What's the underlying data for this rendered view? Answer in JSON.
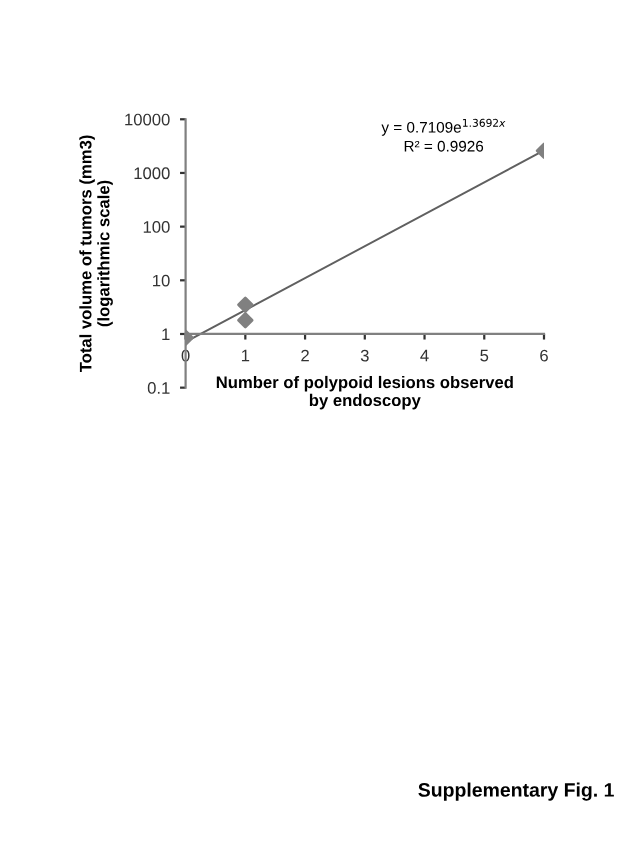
{
  "chart_data": {
    "type": "scatter",
    "xlabel": "Number of polypoid lesions observed\nby endoscopy",
    "ylabel": "Total volume of tumors (mm3)\n(logarithmic scale)",
    "series": [
      {
        "color": "#808080",
        "marker": "diamond",
        "x": [
          0,
          1,
          1,
          6
        ],
        "values": [
          0.85,
          3.5,
          1.8,
          2600
        ]
      },
      {
        "type": "line",
        "color": "#606060",
        "marker": "none",
        "line_style": "solid",
        "x": [
          0,
          6
        ],
        "values": [
          0.71,
          2630
        ]
      }
    ],
    "log": "y",
    "xlim": [
      0,
      6
    ],
    "ylim": [
      0.1,
      10000
    ],
    "xticks": [
      0,
      1,
      2,
      3,
      4,
      5,
      6
    ],
    "yticks": [
      0.1,
      1,
      10,
      100,
      1000,
      10000
    ],
    "grid": false,
    "legend": false,
    "annotations": [
      "y = 0.7109e$^{1.3692x}$",
      "R² = 0.9926",
      "Supplementary Fig. 1"
    ]
  }
}
